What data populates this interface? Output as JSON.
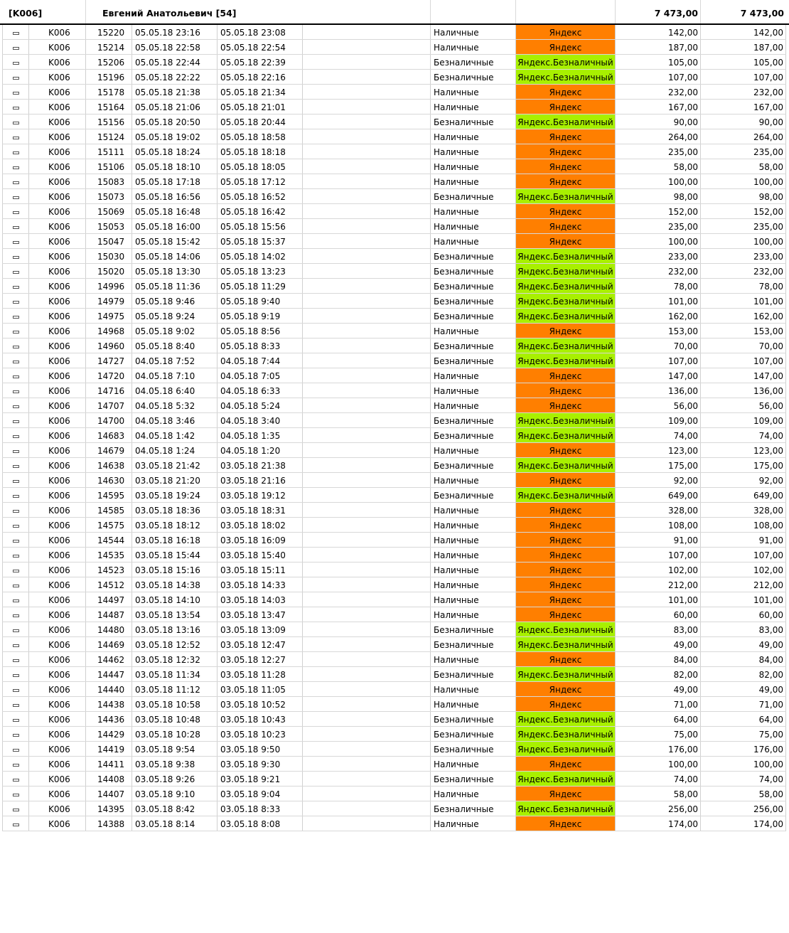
{
  "header": {
    "code": "[K006]",
    "driver": "Евгений Анатольевич [54]",
    "total1": "7 473,00",
    "total2": "7 473,00"
  },
  "colors": {
    "cash": "#ff7f00",
    "cashless": "#a8f000"
  },
  "rows": [
    {
      "code": "K006",
      "id": "15220",
      "t1": "05.05.18 23:16",
      "t2": "05.05.18 23:08",
      "pay": "Наличные",
      "src": "Яндекс",
      "sum": "142,00",
      "sum2": "142,00",
      "kind": "cash"
    },
    {
      "code": "K006",
      "id": "15214",
      "t1": "05.05.18 22:58",
      "t2": "05.05.18 22:54",
      "pay": "Наличные",
      "src": "Яндекс",
      "sum": "187,00",
      "sum2": "187,00",
      "kind": "cash"
    },
    {
      "code": "K006",
      "id": "15206",
      "t1": "05.05.18 22:44",
      "t2": "05.05.18 22:39",
      "pay": "Безналичные",
      "src": "Яндекс.Безналичный",
      "sum": "105,00",
      "sum2": "105,00",
      "kind": "cashless"
    },
    {
      "code": "K006",
      "id": "15196",
      "t1": "05.05.18 22:22",
      "t2": "05.05.18 22:16",
      "pay": "Безналичные",
      "src": "Яндекс.Безналичный",
      "sum": "107,00",
      "sum2": "107,00",
      "kind": "cashless"
    },
    {
      "code": "K006",
      "id": "15178",
      "t1": "05.05.18 21:38",
      "t2": "05.05.18 21:34",
      "pay": "Наличные",
      "src": "Яндекс",
      "sum": "232,00",
      "sum2": "232,00",
      "kind": "cash"
    },
    {
      "code": "K006",
      "id": "15164",
      "t1": "05.05.18 21:06",
      "t2": "05.05.18 21:01",
      "pay": "Наличные",
      "src": "Яндекс",
      "sum": "167,00",
      "sum2": "167,00",
      "kind": "cash"
    },
    {
      "code": "K006",
      "id": "15156",
      "t1": "05.05.18 20:50",
      "t2": "05.05.18 20:44",
      "pay": "Безналичные",
      "src": "Яндекс.Безналичный",
      "sum": "90,00",
      "sum2": "90,00",
      "kind": "cashless"
    },
    {
      "code": "K006",
      "id": "15124",
      "t1": "05.05.18 19:02",
      "t2": "05.05.18 18:58",
      "pay": "Наличные",
      "src": "Яндекс",
      "sum": "264,00",
      "sum2": "264,00",
      "kind": "cash"
    },
    {
      "code": "K006",
      "id": "15111",
      "t1": "05.05.18 18:24",
      "t2": "05.05.18 18:18",
      "pay": "Наличные",
      "src": "Яндекс",
      "sum": "235,00",
      "sum2": "235,00",
      "kind": "cash"
    },
    {
      "code": "K006",
      "id": "15106",
      "t1": "05.05.18 18:10",
      "t2": "05.05.18 18:05",
      "pay": "Наличные",
      "src": "Яндекс",
      "sum": "58,00",
      "sum2": "58,00",
      "kind": "cash"
    },
    {
      "code": "K006",
      "id": "15083",
      "t1": "05.05.18 17:18",
      "t2": "05.05.18 17:12",
      "pay": "Наличные",
      "src": "Яндекс",
      "sum": "100,00",
      "sum2": "100,00",
      "kind": "cash"
    },
    {
      "code": "K006",
      "id": "15073",
      "t1": "05.05.18 16:56",
      "t2": "05.05.18 16:52",
      "pay": "Безналичные",
      "src": "Яндекс.Безналичный",
      "sum": "98,00",
      "sum2": "98,00",
      "kind": "cashless"
    },
    {
      "code": "K006",
      "id": "15069",
      "t1": "05.05.18 16:48",
      "t2": "05.05.18 16:42",
      "pay": "Наличные",
      "src": "Яндекс",
      "sum": "152,00",
      "sum2": "152,00",
      "kind": "cash"
    },
    {
      "code": "K006",
      "id": "15053",
      "t1": "05.05.18 16:00",
      "t2": "05.05.18 15:56",
      "pay": "Наличные",
      "src": "Яндекс",
      "sum": "235,00",
      "sum2": "235,00",
      "kind": "cash"
    },
    {
      "code": "K006",
      "id": "15047",
      "t1": "05.05.18 15:42",
      "t2": "05.05.18 15:37",
      "pay": "Наличные",
      "src": "Яндекс",
      "sum": "100,00",
      "sum2": "100,00",
      "kind": "cash"
    },
    {
      "code": "K006",
      "id": "15030",
      "t1": "05.05.18 14:06",
      "t2": "05.05.18 14:02",
      "pay": "Безналичные",
      "src": "Яндекс.Безналичный",
      "sum": "233,00",
      "sum2": "233,00",
      "kind": "cashless"
    },
    {
      "code": "K006",
      "id": "15020",
      "t1": "05.05.18 13:30",
      "t2": "05.05.18 13:23",
      "pay": "Безналичные",
      "src": "Яндекс.Безналичный",
      "sum": "232,00",
      "sum2": "232,00",
      "kind": "cashless"
    },
    {
      "code": "K006",
      "id": "14996",
      "t1": "05.05.18 11:36",
      "t2": "05.05.18 11:29",
      "pay": "Безналичные",
      "src": "Яндекс.Безналичный",
      "sum": "78,00",
      "sum2": "78,00",
      "kind": "cashless"
    },
    {
      "code": "K006",
      "id": "14979",
      "t1": "05.05.18 9:46",
      "t2": "05.05.18 9:40",
      "pay": "Безналичные",
      "src": "Яндекс.Безналичный",
      "sum": "101,00",
      "sum2": "101,00",
      "kind": "cashless"
    },
    {
      "code": "K006",
      "id": "14975",
      "t1": "05.05.18 9:24",
      "t2": "05.05.18 9:19",
      "pay": "Безналичные",
      "src": "Яндекс.Безналичный",
      "sum": "162,00",
      "sum2": "162,00",
      "kind": "cashless"
    },
    {
      "code": "K006",
      "id": "14968",
      "t1": "05.05.18 9:02",
      "t2": "05.05.18 8:56",
      "pay": "Наличные",
      "src": "Яндекс",
      "sum": "153,00",
      "sum2": "153,00",
      "kind": "cash"
    },
    {
      "code": "K006",
      "id": "14960",
      "t1": "05.05.18 8:40",
      "t2": "05.05.18 8:33",
      "pay": "Безналичные",
      "src": "Яндекс.Безналичный",
      "sum": "70,00",
      "sum2": "70,00",
      "kind": "cashless"
    },
    {
      "code": "K006",
      "id": "14727",
      "t1": "04.05.18 7:52",
      "t2": "04.05.18 7:44",
      "pay": "Безналичные",
      "src": "Яндекс.Безналичный",
      "sum": "107,00",
      "sum2": "107,00",
      "kind": "cashless"
    },
    {
      "code": "K006",
      "id": "14720",
      "t1": "04.05.18 7:10",
      "t2": "04.05.18 7:05",
      "pay": "Наличные",
      "src": "Яндекс",
      "sum": "147,00",
      "sum2": "147,00",
      "kind": "cash"
    },
    {
      "code": "K006",
      "id": "14716",
      "t1": "04.05.18 6:40",
      "t2": "04.05.18 6:33",
      "pay": "Наличные",
      "src": "Яндекс",
      "sum": "136,00",
      "sum2": "136,00",
      "kind": "cash"
    },
    {
      "code": "K006",
      "id": "14707",
      "t1": "04.05.18 5:32",
      "t2": "04.05.18 5:24",
      "pay": "Наличные",
      "src": "Яндекс",
      "sum": "56,00",
      "sum2": "56,00",
      "kind": "cash"
    },
    {
      "code": "K006",
      "id": "14700",
      "t1": "04.05.18 3:46",
      "t2": "04.05.18 3:40",
      "pay": "Безналичные",
      "src": "Яндекс.Безналичный",
      "sum": "109,00",
      "sum2": "109,00",
      "kind": "cashless"
    },
    {
      "code": "K006",
      "id": "14683",
      "t1": "04.05.18 1:42",
      "t2": "04.05.18 1:35",
      "pay": "Безналичные",
      "src": "Яндекс.Безналичный",
      "sum": "74,00",
      "sum2": "74,00",
      "kind": "cashless"
    },
    {
      "code": "K006",
      "id": "14679",
      "t1": "04.05.18 1:24",
      "t2": "04.05.18 1:20",
      "pay": "Наличные",
      "src": "Яндекс",
      "sum": "123,00",
      "sum2": "123,00",
      "kind": "cash"
    },
    {
      "code": "K006",
      "id": "14638",
      "t1": "03.05.18 21:42",
      "t2": "03.05.18 21:38",
      "pay": "Безналичные",
      "src": "Яндекс.Безналичный",
      "sum": "175,00",
      "sum2": "175,00",
      "kind": "cashless"
    },
    {
      "code": "K006",
      "id": "14630",
      "t1": "03.05.18 21:20",
      "t2": "03.05.18 21:16",
      "pay": "Наличные",
      "src": "Яндекс",
      "sum": "92,00",
      "sum2": "92,00",
      "kind": "cash"
    },
    {
      "code": "K006",
      "id": "14595",
      "t1": "03.05.18 19:24",
      "t2": "03.05.18 19:12",
      "pay": "Безналичные",
      "src": "Яндекс.Безналичный",
      "sum": "649,00",
      "sum2": "649,00",
      "kind": "cashless"
    },
    {
      "code": "K006",
      "id": "14585",
      "t1": "03.05.18 18:36",
      "t2": "03.05.18 18:31",
      "pay": "Наличные",
      "src": "Яндекс",
      "sum": "328,00",
      "sum2": "328,00",
      "kind": "cash"
    },
    {
      "code": "K006",
      "id": "14575",
      "t1": "03.05.18 18:12",
      "t2": "03.05.18 18:02",
      "pay": "Наличные",
      "src": "Яндекс",
      "sum": "108,00",
      "sum2": "108,00",
      "kind": "cash"
    },
    {
      "code": "K006",
      "id": "14544",
      "t1": "03.05.18 16:18",
      "t2": "03.05.18 16:09",
      "pay": "Наличные",
      "src": "Яндекс",
      "sum": "91,00",
      "sum2": "91,00",
      "kind": "cash"
    },
    {
      "code": "K006",
      "id": "14535",
      "t1": "03.05.18 15:44",
      "t2": "03.05.18 15:40",
      "pay": "Наличные",
      "src": "Яндекс",
      "sum": "107,00",
      "sum2": "107,00",
      "kind": "cash"
    },
    {
      "code": "K006",
      "id": "14523",
      "t1": "03.05.18 15:16",
      "t2": "03.05.18 15:11",
      "pay": "Наличные",
      "src": "Яндекс",
      "sum": "102,00",
      "sum2": "102,00",
      "kind": "cash"
    },
    {
      "code": "K006",
      "id": "14512",
      "t1": "03.05.18 14:38",
      "t2": "03.05.18 14:33",
      "pay": "Наличные",
      "src": "Яндекс",
      "sum": "212,00",
      "sum2": "212,00",
      "kind": "cash"
    },
    {
      "code": "K006",
      "id": "14497",
      "t1": "03.05.18 14:10",
      "t2": "03.05.18 14:03",
      "pay": "Наличные",
      "src": "Яндекс",
      "sum": "101,00",
      "sum2": "101,00",
      "kind": "cash"
    },
    {
      "code": "K006",
      "id": "14487",
      "t1": "03.05.18 13:54",
      "t2": "03.05.18 13:47",
      "pay": "Наличные",
      "src": "Яндекс",
      "sum": "60,00",
      "sum2": "60,00",
      "kind": "cash"
    },
    {
      "code": "K006",
      "id": "14480",
      "t1": "03.05.18 13:16",
      "t2": "03.05.18 13:09",
      "pay": "Безналичные",
      "src": "Яндекс.Безналичный",
      "sum": "83,00",
      "sum2": "83,00",
      "kind": "cashless"
    },
    {
      "code": "K006",
      "id": "14469",
      "t1": "03.05.18 12:52",
      "t2": "03.05.18 12:47",
      "pay": "Безналичные",
      "src": "Яндекс.Безналичный",
      "sum": "49,00",
      "sum2": "49,00",
      "kind": "cashless"
    },
    {
      "code": "K006",
      "id": "14462",
      "t1": "03.05.18 12:32",
      "t2": "03.05.18 12:27",
      "pay": "Наличные",
      "src": "Яндекс",
      "sum": "84,00",
      "sum2": "84,00",
      "kind": "cash"
    },
    {
      "code": "K006",
      "id": "14447",
      "t1": "03.05.18 11:34",
      "t2": "03.05.18 11:28",
      "pay": "Безналичные",
      "src": "Яндекс.Безналичный",
      "sum": "82,00",
      "sum2": "82,00",
      "kind": "cashless"
    },
    {
      "code": "K006",
      "id": "14440",
      "t1": "03.05.18 11:12",
      "t2": "03.05.18 11:05",
      "pay": "Наличные",
      "src": "Яндекс",
      "sum": "49,00",
      "sum2": "49,00",
      "kind": "cash"
    },
    {
      "code": "K006",
      "id": "14438",
      "t1": "03.05.18 10:58",
      "t2": "03.05.18 10:52",
      "pay": "Наличные",
      "src": "Яндекс",
      "sum": "71,00",
      "sum2": "71,00",
      "kind": "cash"
    },
    {
      "code": "K006",
      "id": "14436",
      "t1": "03.05.18 10:48",
      "t2": "03.05.18 10:43",
      "pay": "Безналичные",
      "src": "Яндекс.Безналичный",
      "sum": "64,00",
      "sum2": "64,00",
      "kind": "cashless"
    },
    {
      "code": "K006",
      "id": "14429",
      "t1": "03.05.18 10:28",
      "t2": "03.05.18 10:23",
      "pay": "Безналичные",
      "src": "Яндекс.Безналичный",
      "sum": "75,00",
      "sum2": "75,00",
      "kind": "cashless"
    },
    {
      "code": "K006",
      "id": "14419",
      "t1": "03.05.18 9:54",
      "t2": "03.05.18 9:50",
      "pay": "Безналичные",
      "src": "Яндекс.Безналичный",
      "sum": "176,00",
      "sum2": "176,00",
      "kind": "cashless"
    },
    {
      "code": "K006",
      "id": "14411",
      "t1": "03.05.18 9:38",
      "t2": "03.05.18 9:30",
      "pay": "Наличные",
      "src": "Яндекс",
      "sum": "100,00",
      "sum2": "100,00",
      "kind": "cash"
    },
    {
      "code": "K006",
      "id": "14408",
      "t1": "03.05.18 9:26",
      "t2": "03.05.18 9:21",
      "pay": "Безналичные",
      "src": "Яндекс.Безналичный",
      "sum": "74,00",
      "sum2": "74,00",
      "kind": "cashless"
    },
    {
      "code": "K006",
      "id": "14407",
      "t1": "03.05.18 9:10",
      "t2": "03.05.18 9:04",
      "pay": "Наличные",
      "src": "Яндекс",
      "sum": "58,00",
      "sum2": "58,00",
      "kind": "cash"
    },
    {
      "code": "K006",
      "id": "14395",
      "t1": "03.05.18 8:42",
      "t2": "03.05.18 8:33",
      "pay": "Безналичные",
      "src": "Яндекс.Безналичный",
      "sum": "256,00",
      "sum2": "256,00",
      "kind": "cashless"
    },
    {
      "code": "K006",
      "id": "14388",
      "t1": "03.05.18 8:14",
      "t2": "03.05.18 8:08",
      "pay": "Наличные",
      "src": "Яндекс",
      "sum": "174,00",
      "sum2": "174,00",
      "kind": "cash"
    }
  ]
}
